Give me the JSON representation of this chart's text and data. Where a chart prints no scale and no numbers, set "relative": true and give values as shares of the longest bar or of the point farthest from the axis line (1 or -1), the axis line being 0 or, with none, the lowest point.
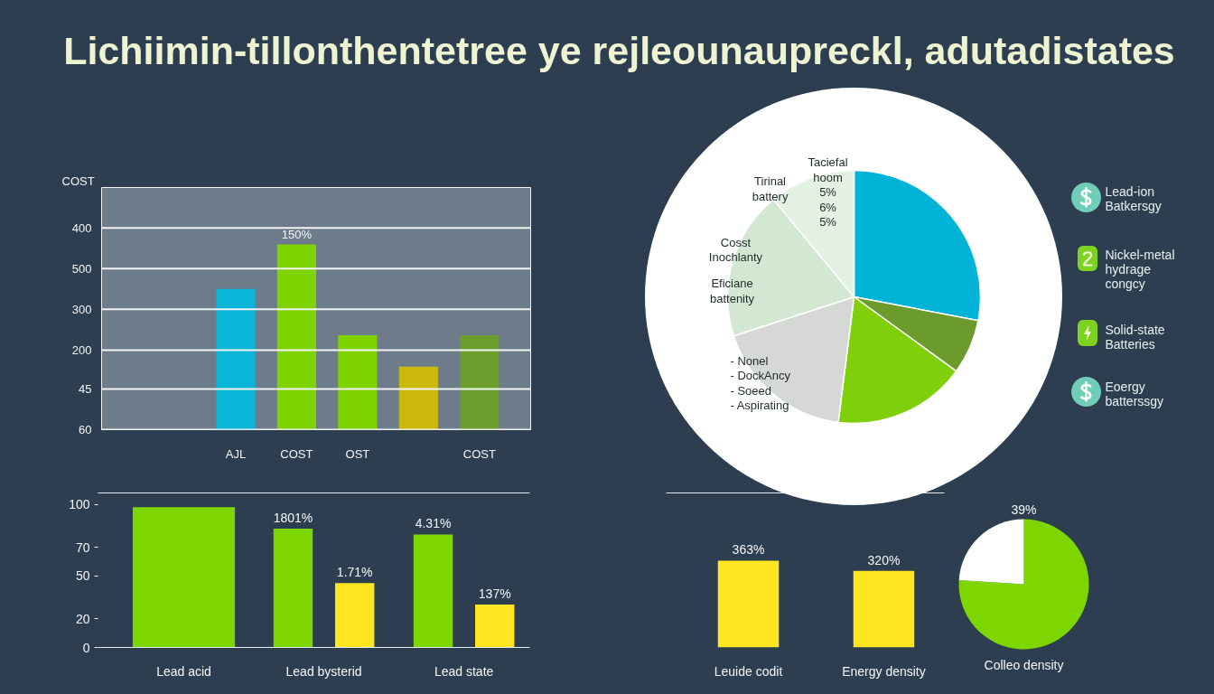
{
  "chart_data": [
    {
      "type": "other",
      "title": "Lichiimin-tillonthentetree ye rejleounaupreckl, adutadistates"
    },
    {
      "type": "bar",
      "relative": true,
      "ylabel": "COST",
      "categories": [
        "AJL",
        "COST",
        "OST",
        null,
        "COST"
      ],
      "values": [
        0.76,
        1,
        0.51,
        0.34,
        0.51
      ],
      "colors": [
        "#0ab5d9",
        "#7fd400",
        "#7fd400",
        "#cbb80c",
        "#6b9e2c"
      ],
      "annotations": [
        "400",
        "500",
        "300",
        "200",
        "45",
        "60",
        {
          "text": "150%",
          "x": "COST",
          "y": 1
        }
      ],
      "ref_lines": [
        {
          "axis": "y",
          "value": 0,
          "color": "#f2f4f6"
        },
        {
          "axis": "y",
          "value": 0.22,
          "color": "#f2f4f6"
        },
        {
          "axis": "y",
          "value": 0.43,
          "color": "#f2f4f6"
        },
        {
          "axis": "y",
          "value": 0.65,
          "color": "#f2f4f6"
        },
        {
          "axis": "y",
          "value": 0.87,
          "color": "#f2f4f6"
        },
        {
          "axis": "y",
          "value": 1.09,
          "color": "#f2f4f6"
        }
      ]
    },
    {
      "type": "pie",
      "categories": [
        null,
        null,
        null,
        null,
        null,
        null
      ],
      "values": [
        28,
        7,
        17,
        18,
        19,
        11
      ],
      "colors": [
        "#00b3d7",
        "#6b9b2c",
        "#7fcf0a",
        "#d6d8d6",
        "#d3e8d3",
        "#e2f1e2"
      ],
      "annotations": [
        "Tirinal\nbattery",
        "Taciefal\nhoom\n5%\n6%\n5%",
        "Cosst\nInochlanty",
        "Eficiane\nbattenity",
        "- Nonel\n- DockAncy\n- Soeed\n- Aspirating"
      ]
    },
    {
      "type": "other",
      "annotations": [
        "Lead-ion\nBatkersgy",
        "Nickel-metal\nhydrage\ncongcy",
        "Solid-state\nBatteries",
        "Eoergy\nbatterssgy"
      ]
    },
    {
      "type": "bar",
      "categories": [
        "Lead acid",
        "Lead bysterid",
        "Lead state"
      ],
      "series": [
        {
          "color": "#7ed600",
          "values": [
            98,
            83,
            79
          ]
        },
        {
          "color": "#ffe620",
          "values": [
            null,
            45,
            30
          ]
        }
      ],
      "ylim": [
        0,
        108
      ],
      "yticks": [
        0,
        20,
        50,
        70,
        100
      ],
      "annotations": [
        "1801%",
        "1.71%",
        "4.31%",
        "137%"
      ]
    },
    {
      "type": "bar",
      "categories": [
        "Leuide codit",
        "Energy density"
      ],
      "values": [
        363,
        320
      ],
      "color": "#ffe620",
      "value_labels": [
        "363%",
        "320%"
      ],
      "tick_labels": "x"
    },
    {
      "type": "pie",
      "title": "Colleo density",
      "categories": [
        null,
        null
      ],
      "values": [
        76,
        24
      ],
      "colors": [
        "#7ed600",
        "#ffffff"
      ],
      "annotations": [
        "39%"
      ]
    }
  ]
}
